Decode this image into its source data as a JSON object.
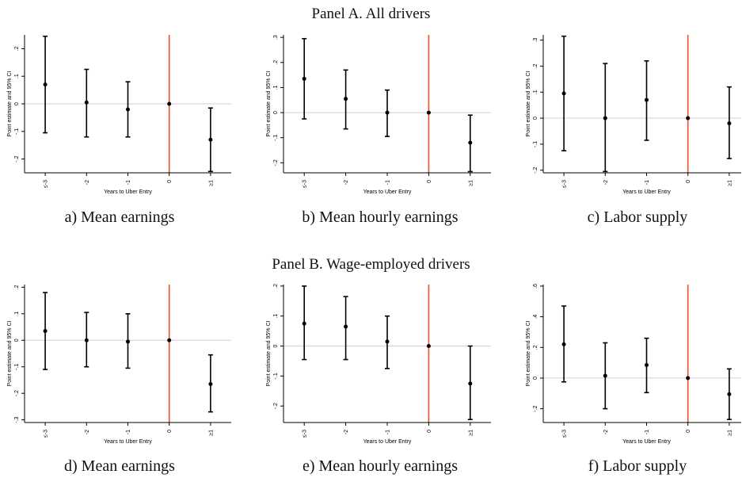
{
  "panels": [
    {
      "title": "Panel A. All drivers"
    },
    {
      "title": "Panel B. Wage-employed drivers"
    }
  ],
  "chart_data": [
    {
      "id": "a",
      "caption": "a) Mean earnings",
      "type": "scatter",
      "xlabel": "Years to Uber Entry",
      "ylabel": "Point estimate and 95% CI",
      "categories": [
        "≤-3",
        "-2",
        "-1",
        "0",
        "≥1"
      ],
      "points": [
        {
          "est": 0.07,
          "lo": -0.105,
          "hi": 0.245
        },
        {
          "est": 0.005,
          "lo": -0.12,
          "hi": 0.125
        },
        {
          "est": -0.02,
          "lo": -0.12,
          "hi": 0.08
        },
        {
          "est": 0.0,
          "lo": 0.0,
          "hi": 0.0
        },
        {
          "est": -0.13,
          "lo": -0.245,
          "hi": -0.015
        }
      ],
      "ylim": [
        -0.25,
        0.25
      ],
      "yticks": [
        -0.2,
        -0.1,
        0,
        0.1,
        0.2
      ],
      "ytick_labels": [
        "-.2",
        "-.1",
        "0",
        ".1",
        ".2"
      ],
      "event_line_at": "0",
      "zero_line": true
    },
    {
      "id": "b",
      "caption": "b) Mean hourly earnings",
      "type": "scatter",
      "xlabel": "Years to Uber Entry",
      "ylabel": "Point estimate and 95% CI",
      "categories": [
        "≤-3",
        "-2",
        "-1",
        "0",
        "≥1"
      ],
      "points": [
        {
          "est": 0.135,
          "lo": -0.025,
          "hi": 0.295
        },
        {
          "est": 0.055,
          "lo": -0.065,
          "hi": 0.17
        },
        {
          "est": 0.0,
          "lo": -0.095,
          "hi": 0.09
        },
        {
          "est": 0.0,
          "lo": 0.0,
          "hi": 0.0
        },
        {
          "est": -0.12,
          "lo": -0.235,
          "hi": -0.01
        }
      ],
      "ylim": [
        -0.24,
        0.31
      ],
      "yticks": [
        -0.2,
        -0.1,
        0,
        0.1,
        0.2,
        0.3
      ],
      "ytick_labels": [
        "-.2",
        "-.1",
        "0",
        ".1",
        ".2",
        ".3"
      ],
      "event_line_at": "0",
      "zero_line": true
    },
    {
      "id": "c",
      "caption": "c) Labor supply",
      "type": "scatter",
      "xlabel": "Years to Uber Entry",
      "ylabel": "Point estimate and 95% CI",
      "categories": [
        "≤-3",
        "-2",
        "-1",
        "0",
        "≥1"
      ],
      "points": [
        {
          "est": 0.095,
          "lo": -0.125,
          "hi": 0.315
        },
        {
          "est": 0.0,
          "lo": -0.205,
          "hi": 0.21
        },
        {
          "est": 0.07,
          "lo": -0.085,
          "hi": 0.22
        },
        {
          "est": 0.0,
          "lo": 0.0,
          "hi": 0.0
        },
        {
          "est": -0.02,
          "lo": -0.155,
          "hi": 0.12
        }
      ],
      "ylim": [
        -0.21,
        0.32
      ],
      "yticks": [
        -0.2,
        -0.1,
        0,
        0.1,
        0.2,
        0.3
      ],
      "ytick_labels": [
        "-.2",
        "-.1",
        "0",
        ".1",
        ".2",
        ".3"
      ],
      "event_line_at": "0",
      "zero_line": true
    },
    {
      "id": "d",
      "caption": "d) Mean earnings",
      "type": "scatter",
      "xlabel": "Years to Uber Entry",
      "ylabel": "Point estimate and 95% CI",
      "categories": [
        "≤-3",
        "-2",
        "-1",
        "0",
        "≥1"
      ],
      "points": [
        {
          "est": 0.035,
          "lo": -0.11,
          "hi": 0.18
        },
        {
          "est": 0.0,
          "lo": -0.1,
          "hi": 0.105
        },
        {
          "est": -0.005,
          "lo": -0.105,
          "hi": 0.1
        },
        {
          "est": 0.0,
          "lo": 0.0,
          "hi": 0.0
        },
        {
          "est": -0.165,
          "lo": -0.27,
          "hi": -0.055
        }
      ],
      "ylim": [
        -0.31,
        0.21
      ],
      "yticks": [
        -0.3,
        -0.2,
        -0.1,
        0,
        0.1,
        0.2
      ],
      "ytick_labels": [
        "-.3",
        "-.2",
        "-.1",
        "0",
        ".1",
        ".2"
      ],
      "event_line_at": "0",
      "zero_line": true
    },
    {
      "id": "e",
      "caption": "e) Mean hourly earnings",
      "type": "scatter",
      "xlabel": "Years to Uber Entry",
      "ylabel": "Point estimate and 95% CI",
      "categories": [
        "≤-3",
        "-2",
        "-1",
        "0",
        "≥1"
      ],
      "points": [
        {
          "est": 0.075,
          "lo": -0.045,
          "hi": 0.2
        },
        {
          "est": 0.065,
          "lo": -0.045,
          "hi": 0.165
        },
        {
          "est": 0.015,
          "lo": -0.075,
          "hi": 0.1
        },
        {
          "est": 0.0,
          "lo": 0.0,
          "hi": 0.0
        },
        {
          "est": -0.125,
          "lo": -0.245,
          "hi": 0.0
        }
      ],
      "ylim": [
        -0.255,
        0.205
      ],
      "yticks": [
        -0.2,
        -0.1,
        0,
        0.1,
        0.2
      ],
      "ytick_labels": [
        "-.2",
        "-.1",
        "0",
        ".1",
        ".2"
      ],
      "event_line_at": "0",
      "zero_line": true
    },
    {
      "id": "f",
      "caption": "f) Labor supply",
      "type": "scatter",
      "xlabel": "Years to Uber Entry",
      "ylabel": "Point estimate and 95% CI",
      "categories": [
        "≤-3",
        "-2",
        "-1",
        "0",
        "≥1"
      ],
      "points": [
        {
          "est": 0.22,
          "lo": -0.025,
          "hi": 0.47
        },
        {
          "est": 0.015,
          "lo": -0.2,
          "hi": 0.23
        },
        {
          "est": 0.085,
          "lo": -0.095,
          "hi": 0.26
        },
        {
          "est": 0.0,
          "lo": 0.0,
          "hi": 0.0
        },
        {
          "est": -0.105,
          "lo": -0.27,
          "hi": 0.06
        }
      ],
      "ylim": [
        -0.29,
        0.61
      ],
      "yticks": [
        -0.2,
        0,
        0.2,
        0.4,
        0.6
      ],
      "ytick_labels": [
        "-.2",
        "0",
        ".2",
        ".4",
        ".6"
      ],
      "event_line_at": "0",
      "zero_line": true
    }
  ]
}
